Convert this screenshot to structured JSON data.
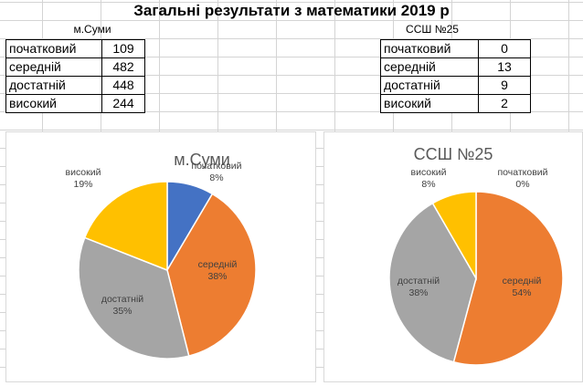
{
  "sheet": {
    "title": "Загальні результати з математики 2019 р",
    "left_caption": "м.Суми",
    "right_caption": "ССШ №25"
  },
  "left_table": {
    "rows": [
      {
        "label": "початковий",
        "value": "109"
      },
      {
        "label": "середній",
        "value": "482"
      },
      {
        "label": "достатній",
        "value": "448"
      },
      {
        "label": "високий",
        "value": "244"
      }
    ]
  },
  "right_table": {
    "rows": [
      {
        "label": "початковий",
        "value": "0"
      },
      {
        "label": "середній",
        "value": "13"
      },
      {
        "label": "достатній",
        "value": "9"
      },
      {
        "label": "високий",
        "value": "2"
      }
    ]
  },
  "colors": {
    "початковий": "#4472c4",
    "середній": "#ed7d31",
    "достатній": "#a5a5a5",
    "високий": "#ffc000"
  },
  "chart_data": [
    {
      "type": "pie",
      "title": "м.Суми",
      "categories": [
        "початковий",
        "середній",
        "достатній",
        "високий"
      ],
      "values": [
        109,
        482,
        448,
        244
      ],
      "labels": [
        "початковий\n8%",
        "середній\n38%",
        "достатній\n35%",
        "високий\n19%"
      ]
    },
    {
      "type": "pie",
      "title": "ССШ №25",
      "categories": [
        "початковий",
        "середній",
        "достатній",
        "високий"
      ],
      "values": [
        0,
        13,
        9,
        2
      ],
      "labels": [
        "початковий\n0%",
        "середній\n54%",
        "достатній\n38%",
        "високий\n8%"
      ]
    }
  ]
}
